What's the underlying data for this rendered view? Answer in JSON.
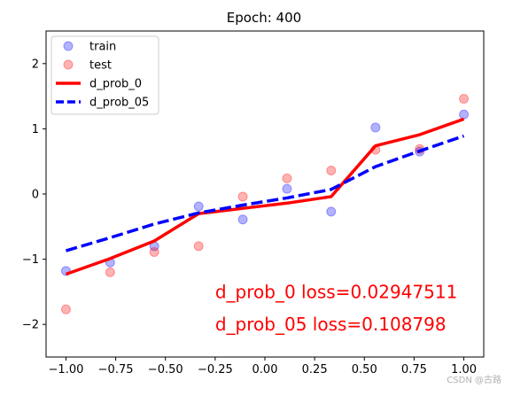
{
  "chart_data": {
    "type": "scatter",
    "title": "Epoch: 400",
    "xlabel": "",
    "ylabel": "",
    "xlim": [
      -1.1,
      1.1
    ],
    "ylim": [
      -2.5,
      2.5
    ],
    "xticks": [
      -1.0,
      -0.75,
      -0.5,
      -0.25,
      0.0,
      0.25,
      0.5,
      0.75,
      1.0
    ],
    "xtick_labels": [
      "−1.00",
      "−0.75",
      "−0.50",
      "−0.25",
      "0.00",
      "0.25",
      "0.50",
      "0.75",
      "1.00"
    ],
    "yticks": [
      -2,
      -1,
      0,
      1,
      2
    ],
    "ytick_labels": [
      "−2",
      "−1",
      "0",
      "1",
      "2"
    ],
    "grid": false,
    "legend_position": "top-left",
    "series": [
      {
        "name": "train",
        "kind": "scatter",
        "color": "#0000ff",
        "x": [
          -1.0,
          -0.778,
          -0.556,
          -0.333,
          -0.111,
          0.111,
          0.333,
          0.556,
          0.778,
          1.0
        ],
        "y": [
          -1.18,
          -1.05,
          -0.8,
          -0.19,
          -0.39,
          0.08,
          -0.27,
          1.02,
          0.65,
          1.22
        ]
      },
      {
        "name": "test",
        "kind": "scatter",
        "color": "#ff0000",
        "x": [
          -1.0,
          -0.778,
          -0.556,
          -0.333,
          -0.111,
          0.111,
          0.333,
          0.556,
          0.778,
          1.0
        ],
        "y": [
          -1.77,
          -1.2,
          -0.89,
          -0.8,
          -0.04,
          0.24,
          0.36,
          0.68,
          0.69,
          1.46
        ]
      },
      {
        "name": "d_prob_0",
        "kind": "line",
        "style": "solid",
        "color": "#ff0000",
        "x": [
          -1.0,
          -0.778,
          -0.556,
          -0.333,
          -0.111,
          0.111,
          0.333,
          0.556,
          0.778,
          1.0
        ],
        "y": [
          -1.23,
          -0.99,
          -0.72,
          -0.3,
          -0.22,
          -0.14,
          -0.04,
          0.74,
          0.91,
          1.15
        ]
      },
      {
        "name": "d_prob_05",
        "kind": "line",
        "style": "dashed",
        "color": "#0000ff",
        "x": [
          -1.0,
          -0.778,
          -0.556,
          -0.333,
          -0.111,
          0.111,
          0.333,
          0.556,
          0.778,
          1.0
        ],
        "y": [
          -0.87,
          -0.67,
          -0.46,
          -0.29,
          -0.17,
          -0.06,
          0.07,
          0.42,
          0.66,
          0.89
        ]
      }
    ],
    "annotations": [
      {
        "text": "d_prob_0 loss=0.02947511",
        "x": -0.25,
        "y": -1.5,
        "color": "#ff0000"
      },
      {
        "text": "d_prob_05 loss=0.108798",
        "x": -0.25,
        "y": -2.0,
        "color": "#ff0000"
      }
    ]
  },
  "watermark": "CSDN @古路"
}
